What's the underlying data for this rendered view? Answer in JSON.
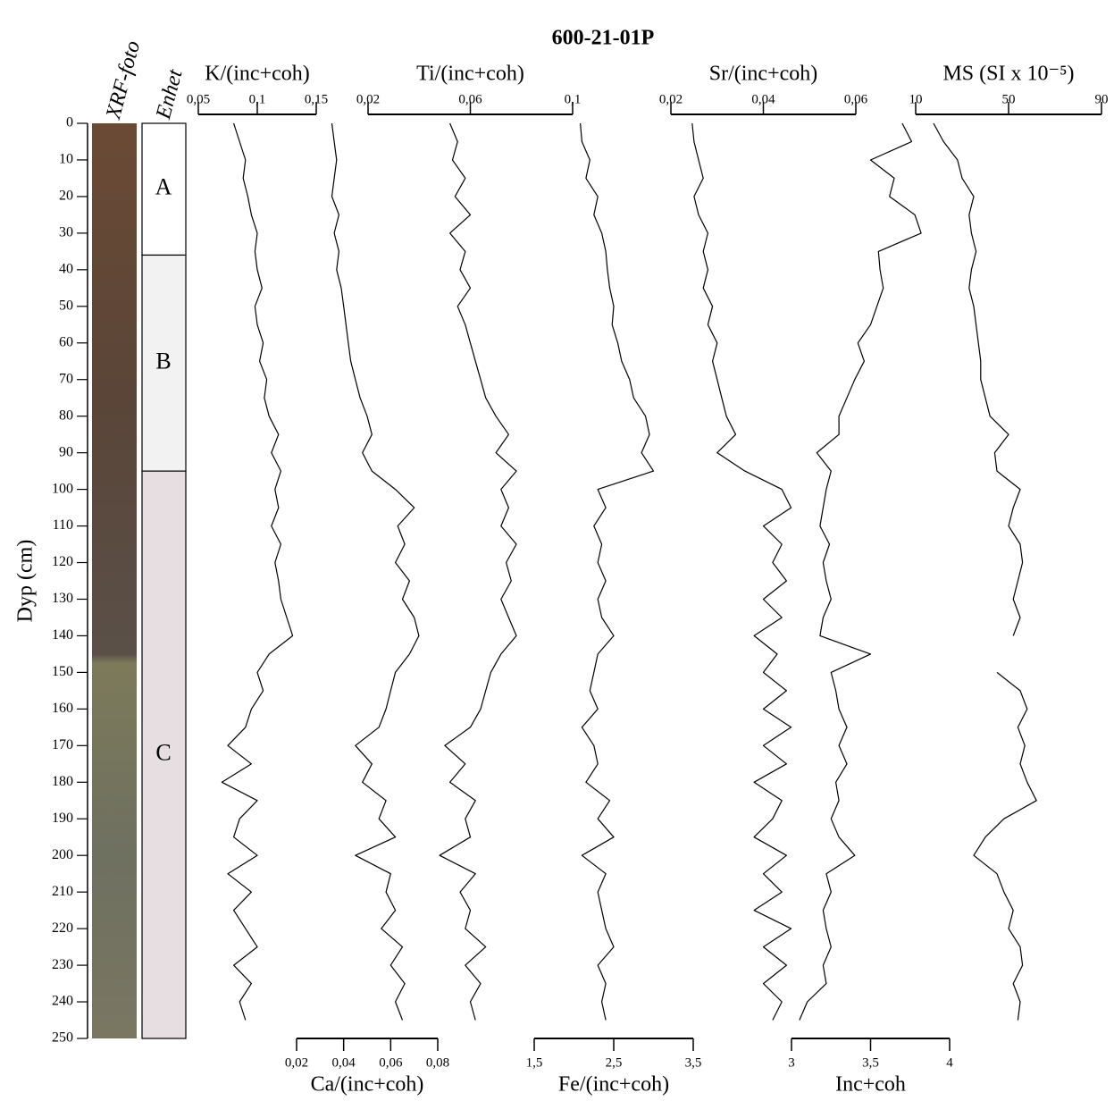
{
  "chart_data": {
    "type": "line",
    "title": "600-21-01P",
    "depth_label": "Dyp (cm)",
    "photo_label": "XRF-foto",
    "units_label": "Enhet",
    "units": [
      {
        "label": "A",
        "top": 0,
        "bottom": 36,
        "color": "#ffffff"
      },
      {
        "label": "B",
        "top": 36,
        "bottom": 95,
        "color": "#f2f2f2"
      },
      {
        "label": "C",
        "top": 95,
        "bottom": 250,
        "color": "#e6dee1"
      }
    ],
    "ylim": [
      0,
      250
    ],
    "yticks": [
      0,
      10,
      20,
      30,
      40,
      50,
      60,
      70,
      80,
      90,
      100,
      110,
      120,
      130,
      140,
      150,
      160,
      170,
      180,
      190,
      200,
      210,
      220,
      230,
      240,
      250
    ],
    "depth": [
      0,
      5,
      10,
      15,
      20,
      25,
      30,
      35,
      40,
      45,
      50,
      55,
      60,
      65,
      70,
      75,
      80,
      85,
      90,
      95,
      100,
      105,
      110,
      115,
      120,
      125,
      130,
      135,
      140,
      145,
      150,
      155,
      160,
      165,
      170,
      175,
      180,
      185,
      190,
      195,
      200,
      205,
      210,
      215,
      220,
      225,
      230,
      235,
      240,
      245
    ],
    "series": [
      {
        "name": "K/(inc+coh)",
        "axis_position": "top",
        "color": "#000000",
        "xlim": [
          0.05,
          0.15
        ],
        "xticks": [
          {
            "value": 0.05,
            "label": "0,05"
          },
          {
            "value": 0.1,
            "label": "0,1"
          },
          {
            "value": 0.15,
            "label": "0,15"
          }
        ],
        "values": [
          0.08,
          0.085,
          0.09,
          0.088,
          0.092,
          0.095,
          0.1,
          0.098,
          0.1,
          0.104,
          0.098,
          0.1,
          0.105,
          0.102,
          0.108,
          0.106,
          0.11,
          0.118,
          0.112,
          0.12,
          0.115,
          0.118,
          0.112,
          0.12,
          0.115,
          0.118,
          0.12,
          0.125,
          0.13,
          0.11,
          0.1,
          0.105,
          0.095,
          0.09,
          0.075,
          0.095,
          0.07,
          0.1,
          0.085,
          0.08,
          0.1,
          0.075,
          0.095,
          0.08,
          0.09,
          0.1,
          0.08,
          0.095,
          0.085,
          0.09
        ]
      },
      {
        "name": "Ca/(inc+coh)",
        "axis_position": "bottom",
        "color": "#000000",
        "xlim": [
          0.02,
          0.08
        ],
        "xticks": [
          {
            "value": 0.02,
            "label": "0,02"
          },
          {
            "value": 0.04,
            "label": "0,04"
          },
          {
            "value": 0.06,
            "label": "0,06"
          },
          {
            "value": 0.08,
            "label": "0,08"
          }
        ],
        "values": [
          0.035,
          0.036,
          0.037,
          0.036,
          0.035,
          0.038,
          0.036,
          0.038,
          0.037,
          0.039,
          0.04,
          0.041,
          0.042,
          0.043,
          0.045,
          0.047,
          0.05,
          0.052,
          0.048,
          0.052,
          0.062,
          0.07,
          0.063,
          0.066,
          0.062,
          0.068,
          0.065,
          0.07,
          0.072,
          0.068,
          0.062,
          0.06,
          0.058,
          0.055,
          0.045,
          0.052,
          0.048,
          0.058,
          0.055,
          0.062,
          0.045,
          0.06,
          0.058,
          0.062,
          0.056,
          0.065,
          0.06,
          0.066,
          0.062,
          0.065
        ]
      },
      {
        "name": "Ti/(inc+coh)",
        "axis_position": "top",
        "color": "#000000",
        "xlim": [
          0.02,
          0.1
        ],
        "xticks": [
          {
            "value": 0.02,
            "label": "0,02"
          },
          {
            "value": 0.06,
            "label": "0,06"
          },
          {
            "value": 0.1,
            "label": "0,1"
          }
        ],
        "values": [
          0.052,
          0.055,
          0.053,
          0.058,
          0.054,
          0.06,
          0.052,
          0.058,
          0.056,
          0.06,
          0.055,
          0.058,
          0.06,
          0.062,
          0.064,
          0.066,
          0.07,
          0.075,
          0.07,
          0.078,
          0.072,
          0.075,
          0.072,
          0.078,
          0.074,
          0.076,
          0.072,
          0.075,
          0.078,
          0.072,
          0.068,
          0.066,
          0.064,
          0.06,
          0.05,
          0.058,
          0.052,
          0.062,
          0.058,
          0.06,
          0.048,
          0.062,
          0.056,
          0.06,
          0.058,
          0.066,
          0.058,
          0.064,
          0.06,
          0.062
        ]
      },
      {
        "name": "Fe/(inc+coh)",
        "axis_position": "bottom",
        "color": "#000000",
        "xlim": [
          1.5,
          3.5
        ],
        "xticks": [
          {
            "value": 1.5,
            "label": "1,5"
          },
          {
            "value": 2.5,
            "label": "2,5"
          },
          {
            "value": 3.5,
            "label": "3,5"
          }
        ],
        "values": [
          2.08,
          2.1,
          2.2,
          2.15,
          2.3,
          2.25,
          2.35,
          2.4,
          2.42,
          2.45,
          2.5,
          2.48,
          2.55,
          2.6,
          2.7,
          2.75,
          2.9,
          2.95,
          2.85,
          3.0,
          2.3,
          2.4,
          2.25,
          2.35,
          2.3,
          2.4,
          2.3,
          2.35,
          2.5,
          2.3,
          2.25,
          2.2,
          2.3,
          2.1,
          2.25,
          2.3,
          2.15,
          2.45,
          2.3,
          2.5,
          2.1,
          2.4,
          2.3,
          2.35,
          2.4,
          2.5,
          2.3,
          2.4,
          2.35,
          2.4
        ]
      },
      {
        "name": "Sr/(inc+coh)",
        "axis_position": "top",
        "color": "#000000",
        "xlim": [
          0.02,
          0.06
        ],
        "xticks": [
          {
            "value": 0.02,
            "label": "0,02"
          },
          {
            "value": 0.04,
            "label": "0,04"
          },
          {
            "value": 0.06,
            "label": "0,06"
          }
        ],
        "values": [
          0.0246,
          0.025,
          0.026,
          0.027,
          0.025,
          0.026,
          0.028,
          0.027,
          0.028,
          0.027,
          0.029,
          0.028,
          0.03,
          0.029,
          0.03,
          0.031,
          0.032,
          0.034,
          0.03,
          0.036,
          0.044,
          0.046,
          0.04,
          0.044,
          0.042,
          0.045,
          0.04,
          0.044,
          0.038,
          0.043,
          0.04,
          0.045,
          0.04,
          0.046,
          0.04,
          0.045,
          0.038,
          0.044,
          0.042,
          0.038,
          0.045,
          0.04,
          0.044,
          0.038,
          0.046,
          0.04,
          0.045,
          0.04,
          0.044,
          0.042
        ]
      },
      {
        "name": "Inc+coh",
        "axis_position": "bottom",
        "color": "#000000",
        "xlim": [
          3,
          4
        ],
        "xticks": [
          3,
          {
            "value": 3.5,
            "label": "3,5"
          },
          4
        ],
        "values": [
          3.7,
          3.76,
          3.5,
          3.65,
          3.62,
          3.78,
          3.82,
          3.55,
          3.56,
          3.58,
          3.54,
          3.5,
          3.42,
          3.46,
          3.4,
          3.35,
          3.3,
          3.3,
          3.16,
          3.25,
          3.22,
          3.2,
          3.18,
          3.24,
          3.2,
          3.22,
          3.25,
          3.2,
          3.18,
          3.5,
          3.25,
          3.28,
          3.3,
          3.35,
          3.3,
          3.35,
          3.28,
          3.3,
          3.25,
          3.3,
          3.4,
          3.22,
          3.25,
          3.2,
          3.22,
          3.25,
          3.2,
          3.22,
          3.1,
          3.05
        ]
      },
      {
        "name": "MS (SI x 10⁻⁵)",
        "axis_position": "top",
        "color": "#000000",
        "xlim": [
          10,
          90
        ],
        "xticks": [
          10,
          50,
          90
        ],
        "values": [
          17.7,
          22,
          28,
          30,
          35,
          33,
          34,
          36,
          34,
          33,
          35,
          36,
          37,
          38,
          38,
          40,
          42,
          50,
          44,
          45,
          55,
          52,
          50,
          55,
          56,
          54,
          52,
          55,
          52,
          null,
          45,
          55,
          58,
          54,
          57,
          55,
          58,
          62,
          48,
          40,
          35,
          45,
          48,
          52,
          50,
          55,
          56,
          52,
          55,
          54
        ]
      }
    ]
  }
}
